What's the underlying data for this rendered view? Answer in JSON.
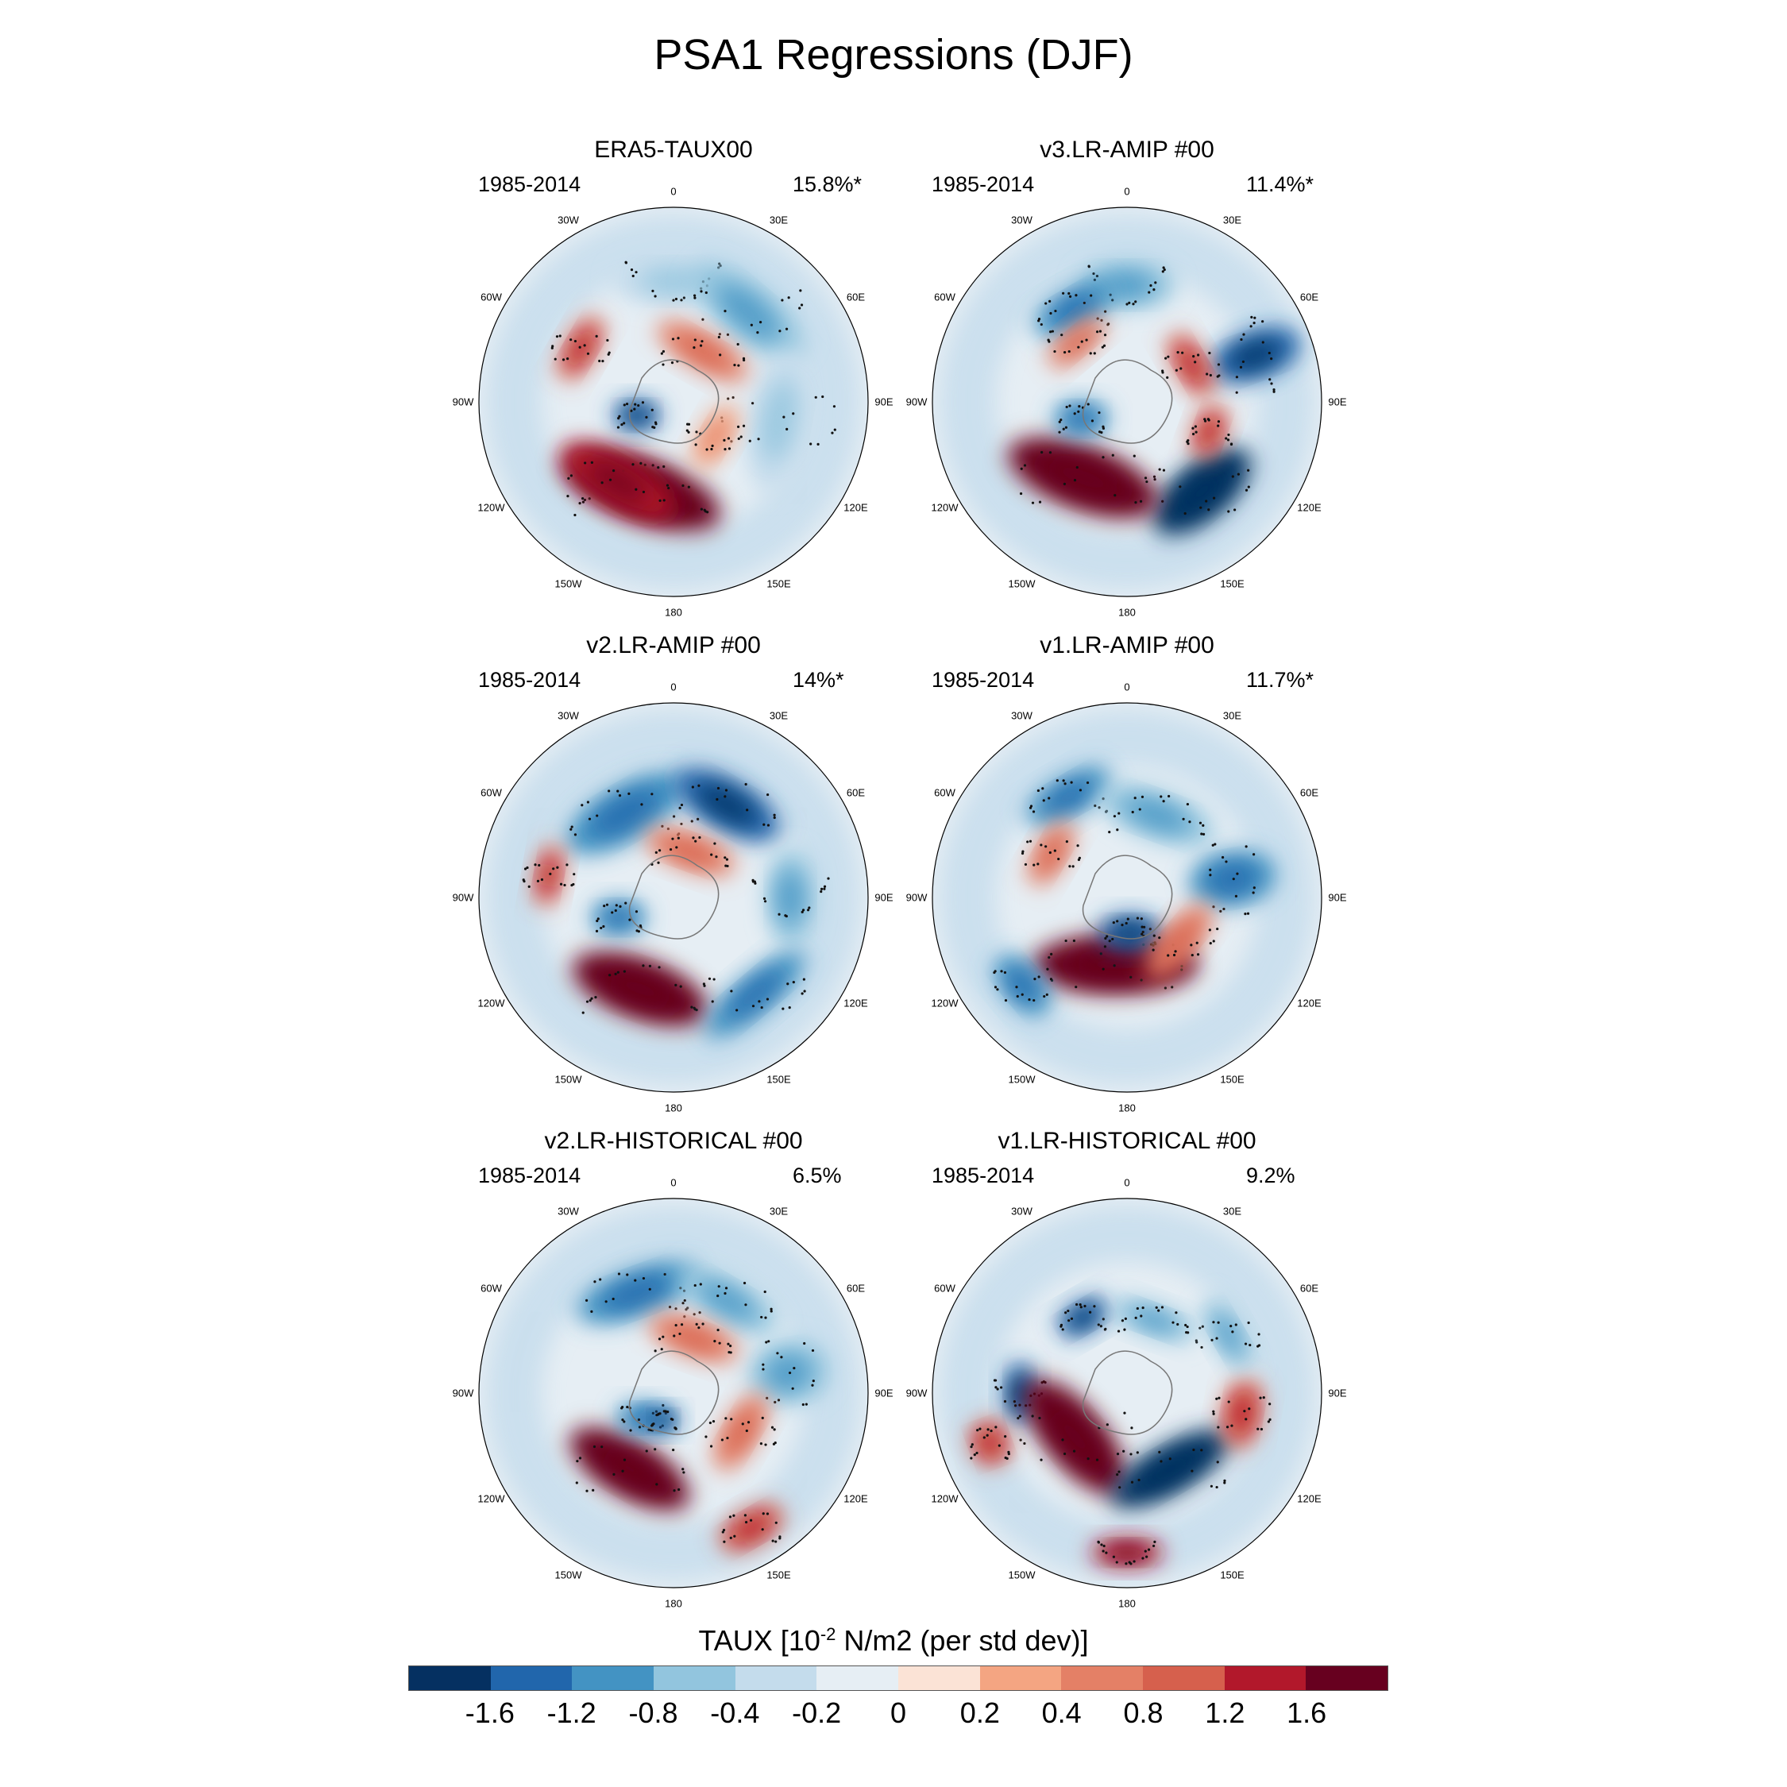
{
  "title": "PSA1 Regressions (DJF)",
  "chart_data": {
    "type": "heatmap",
    "projection": "south-polar-stereographic",
    "longitude_labels": [
      "0",
      "30E",
      "60E",
      "90E",
      "120E",
      "150E",
      "180",
      "150W",
      "120W",
      "90W",
      "60W",
      "30W"
    ],
    "panels": [
      {
        "title": "ERA5-TAUX00",
        "period": "1985-2014",
        "variance": "15.8%*"
      },
      {
        "title": "v3.LR-AMIP  #00",
        "period": "1985-2014",
        "variance": "11.4%*"
      },
      {
        "title": "v2.LR-AMIP  #00",
        "period": "1985-2014",
        "variance": "14%*"
      },
      {
        "title": "v1.LR-AMIP  #00",
        "period": "1985-2014",
        "variance": "11.7%*"
      },
      {
        "title": "v2.LR-HISTORICAL  #00",
        "period": "1985-2014",
        "variance": "6.5%"
      },
      {
        "title": "v1.LR-HISTORICAL  #00",
        "period": "1985-2014",
        "variance": "9.2%"
      }
    ],
    "colorbar": {
      "title_prefix": "TAUX [10",
      "title_exp": "-2",
      "title_suffix": " N/m2 (per std dev)]",
      "levels": [
        "-1.6",
        "-1.2",
        "-0.8",
        "-0.4",
        "-0.2",
        "0",
        "0.2",
        "0.4",
        "0.8",
        "1.2",
        "1.6"
      ],
      "colors": [
        "#053061",
        "#2166ac",
        "#4393c3",
        "#92c5de",
        "#c4dcec",
        "#e6eef4",
        "#fbe3d6",
        "#f4a582",
        "#e48066",
        "#d6604d",
        "#b2182b",
        "#67001f"
      ]
    }
  }
}
